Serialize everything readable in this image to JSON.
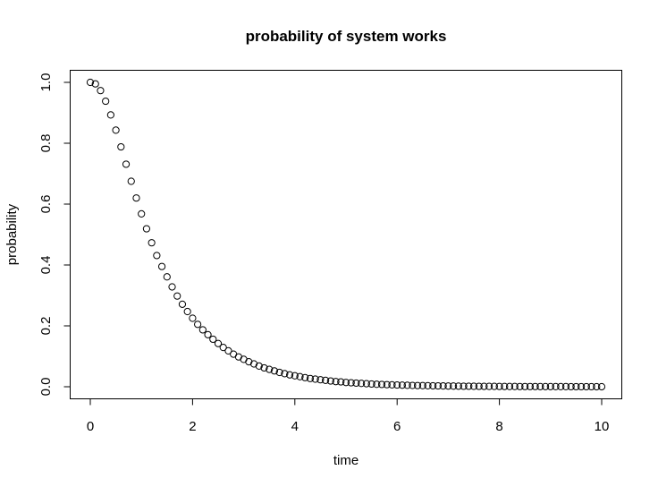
{
  "chart_data": {
    "type": "scatter",
    "title": "probability of system works",
    "xlabel": "time",
    "ylabel": "probability",
    "xlim": [
      0,
      10
    ],
    "ylim": [
      0,
      1
    ],
    "x_ticks": [
      "0",
      "2",
      "4",
      "6",
      "8",
      "10"
    ],
    "y_ticks": [
      "0.0",
      "0.2",
      "0.4",
      "0.6",
      "0.8",
      "1.0"
    ],
    "grid": false,
    "legend": "none",
    "marker": "open-circle",
    "x": [
      0.0,
      0.1,
      0.2,
      0.3,
      0.4,
      0.5,
      0.6,
      0.7,
      0.8,
      0.9,
      1.0,
      1.1,
      1.2,
      1.3,
      1.4,
      1.5,
      1.6,
      1.7,
      1.8,
      1.9,
      2.0,
      2.1,
      2.2,
      2.3,
      2.4,
      2.5,
      2.6,
      2.7,
      2.8,
      2.9,
      3.0,
      3.1,
      3.2,
      3.3,
      3.4,
      3.5,
      3.6,
      3.7,
      3.8,
      3.9,
      4.0,
      4.1,
      4.2,
      4.3,
      4.4,
      4.5,
      4.6,
      4.7,
      4.8,
      4.9,
      5.0,
      5.1,
      5.2,
      5.3,
      5.4,
      5.5,
      5.6,
      5.7,
      5.8,
      5.9,
      6.0,
      6.1,
      6.2,
      6.3,
      6.4,
      6.5,
      6.6,
      6.7,
      6.8,
      6.9,
      7.0,
      7.1,
      7.2,
      7.3,
      7.4,
      7.5,
      7.6,
      7.7,
      7.8,
      7.9,
      8.0,
      8.1,
      8.2,
      8.3,
      8.4,
      8.5,
      8.6,
      8.7,
      8.8,
      8.9,
      9.0,
      9.1,
      9.2,
      9.3,
      9.4,
      9.5,
      9.6,
      9.7,
      9.8,
      9.9,
      10.0
    ],
    "y": [
      1.0,
      0.995,
      0.973,
      0.938,
      0.893,
      0.843,
      0.788,
      0.731,
      0.675,
      0.62,
      0.568,
      0.519,
      0.473,
      0.431,
      0.395,
      0.361,
      0.328,
      0.298,
      0.271,
      0.247,
      0.225,
      0.205,
      0.187,
      0.171,
      0.156,
      0.142,
      0.129,
      0.118,
      0.107,
      0.098,
      0.09,
      0.082,
      0.075,
      0.068,
      0.062,
      0.057,
      0.052,
      0.047,
      0.043,
      0.039,
      0.036,
      0.033,
      0.03,
      0.027,
      0.025,
      0.023,
      0.021,
      0.019,
      0.017,
      0.016,
      0.014,
      0.013,
      0.012,
      0.011,
      0.01,
      0.009,
      0.008,
      0.0075,
      0.0068,
      0.0062,
      0.0057,
      0.0052,
      0.0047,
      0.0043,
      0.0039,
      0.0036,
      0.0033,
      0.003,
      0.0027,
      0.0025,
      0.0023,
      0.0021,
      0.0019,
      0.0017,
      0.0016,
      0.0014,
      0.0013,
      0.0012,
      0.0011,
      0.001,
      0.0009,
      0.0008,
      0.0007,
      0.0007,
      0.0006,
      0.0006,
      0.0005,
      0.0005,
      0.0004,
      0.0004,
      0.0004,
      0.0003,
      0.0003,
      0.0003,
      0.0002,
      0.0002,
      0.0002,
      0.0002,
      0.0002,
      0.0001,
      0.0001
    ]
  }
}
